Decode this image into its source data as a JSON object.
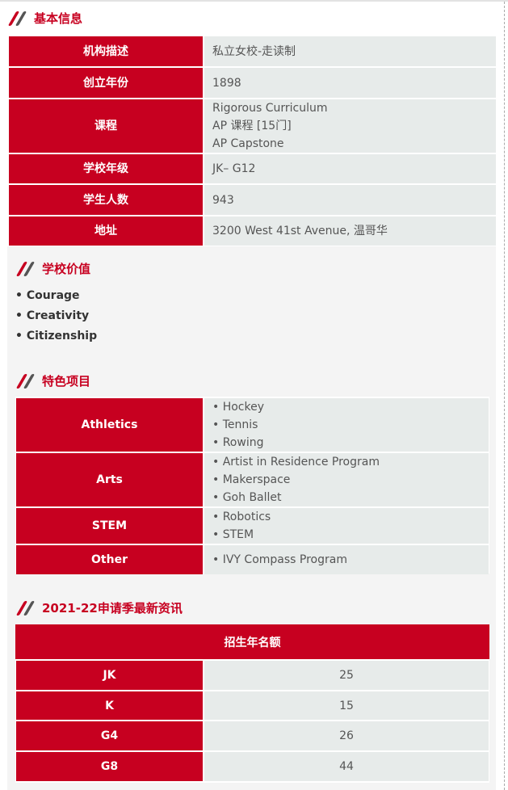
{
  "colors": {
    "accent": "#c70020",
    "cell": "#e7ebea",
    "panel": "#f4f4f4"
  },
  "basic": {
    "title": "基本信息",
    "rows": [
      {
        "label": "机构描述",
        "value": [
          "私立女校-走读制"
        ]
      },
      {
        "label": "创立年份",
        "value": [
          "1898"
        ]
      },
      {
        "label": "课程",
        "value": [
          "Rigorous Curriculum",
          "AP 课程 [15门]",
          "AP Capstone"
        ]
      },
      {
        "label": "学校年级",
        "value": [
          "JK– G12"
        ]
      },
      {
        "label": "学生人数",
        "value": [
          "943"
        ]
      },
      {
        "label": "地址",
        "value": [
          "3200 West 41st Avenue, 温哥华"
        ]
      }
    ]
  },
  "values": {
    "title": "学校价值",
    "items": [
      "• Courage",
      "• Creativity",
      "• Citizenship"
    ]
  },
  "programs": {
    "title": "特色项目",
    "rows": [
      {
        "label": "Athletics",
        "value": [
          "• Hockey",
          "• Tennis",
          "• Rowing"
        ]
      },
      {
        "label": "Arts",
        "value": [
          "• Artist in Residence Program",
          "• Makerspace",
          "• Goh Ballet"
        ]
      },
      {
        "label": "STEM",
        "value": [
          "• Robotics",
          "• STEM"
        ]
      },
      {
        "label": "Other",
        "value": [
          "• IVY Compass Program"
        ]
      }
    ]
  },
  "admission": {
    "title": "2021-22申请季最新资讯",
    "header": "招生年名额",
    "rows": [
      {
        "label": "JK",
        "value": "25"
      },
      {
        "label": "K",
        "value": "15"
      },
      {
        "label": "G4",
        "value": "26"
      },
      {
        "label": "G8",
        "value": "44"
      }
    ]
  }
}
